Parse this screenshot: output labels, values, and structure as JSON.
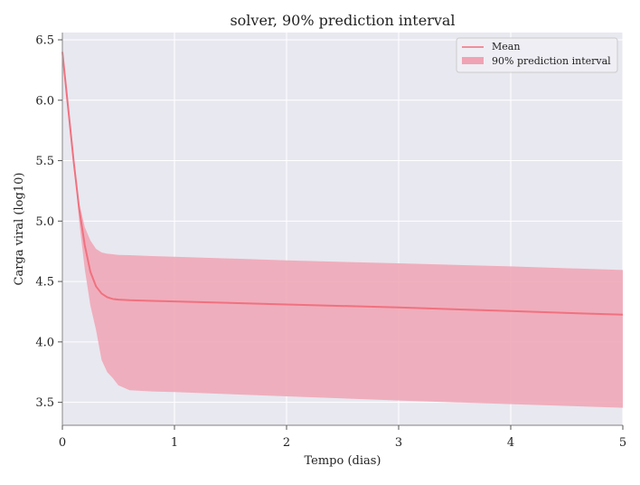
{
  "chart_data": {
    "type": "line",
    "title": "solver, 90% prediction interval",
    "xlabel": "Tempo (dias)",
    "ylabel": "Carga viral (log10)",
    "xlim": [
      0,
      5
    ],
    "ylim": [
      3.31,
      6.56
    ],
    "x_ticks": [
      "0",
      "1",
      "2",
      "3",
      "4",
      "5"
    ],
    "y_ticks": [
      "3.5",
      "4.0",
      "4.5",
      "5.0",
      "5.5",
      "6.0",
      "6.5"
    ],
    "grid": true,
    "legend_position": "top-right",
    "legend": [
      "Mean",
      "90% prediction interval"
    ],
    "colors": {
      "mean_line": "#f0717f",
      "interval_fill": "#f0a3b4",
      "plot_background": "#e8e8f0",
      "grid": "#ffffff",
      "spine": "#999999"
    },
    "series": [
      {
        "name": "Mean",
        "x": [
          0,
          0.05,
          0.1,
          0.15,
          0.2,
          0.25,
          0.3,
          0.35,
          0.4,
          0.45,
          0.5,
          0.6,
          0.8,
          1.0,
          2.0,
          3.0,
          4.0,
          5.0
        ],
        "y": [
          6.4,
          5.95,
          5.5,
          5.1,
          4.8,
          4.58,
          4.46,
          4.4,
          4.37,
          4.355,
          4.35,
          4.345,
          4.34,
          4.335,
          4.31,
          4.285,
          4.255,
          4.225
        ]
      },
      {
        "name": "90% prediction interval",
        "x": [
          0,
          0.05,
          0.1,
          0.15,
          0.2,
          0.25,
          0.3,
          0.35,
          0.4,
          0.45,
          0.5,
          0.6,
          0.8,
          1.0,
          2.0,
          3.0,
          4.0,
          5.0
        ],
        "lower": [
          6.4,
          5.95,
          5.5,
          5.0,
          4.6,
          4.3,
          4.1,
          3.85,
          3.75,
          3.7,
          3.64,
          3.6,
          3.59,
          3.585,
          3.55,
          3.515,
          3.485,
          3.455
        ],
        "upper": [
          6.4,
          5.95,
          5.5,
          5.15,
          4.95,
          4.84,
          4.77,
          4.74,
          4.73,
          4.725,
          4.72,
          4.718,
          4.71,
          4.705,
          4.675,
          4.65,
          4.625,
          4.595
        ]
      }
    ]
  }
}
